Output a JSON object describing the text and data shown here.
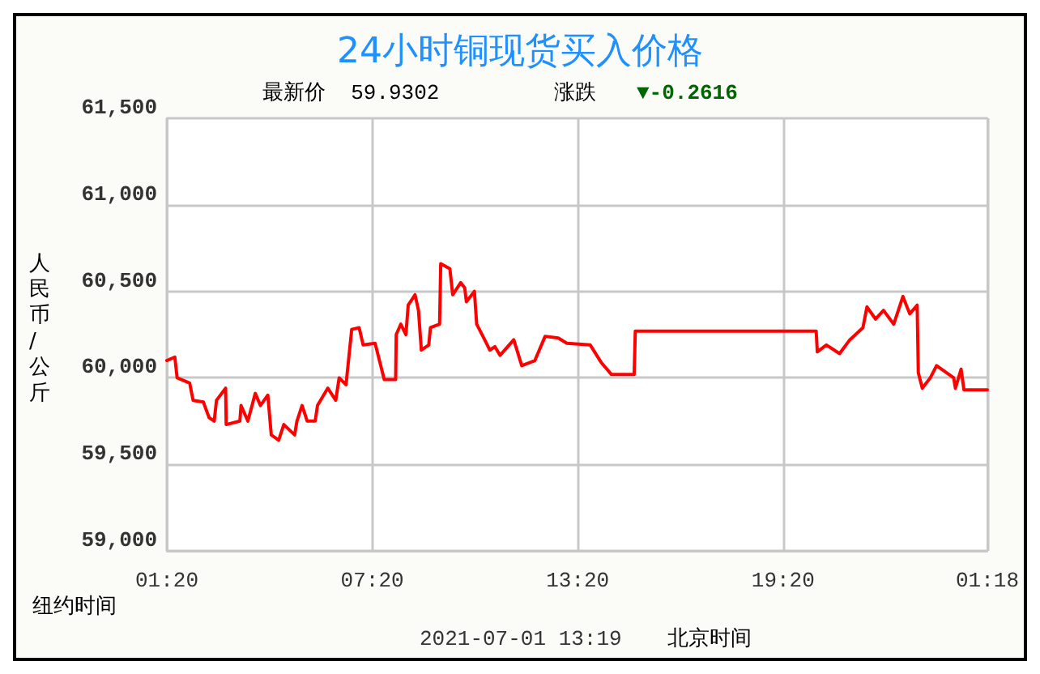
{
  "chart_data": {
    "type": "line",
    "title": "24小时铜现货买入价格",
    "ylabel": "人民币/公斤",
    "annotations": [
      "最新价  59.9302",
      "涨跌",
      "▼-0.2616",
      "纽约时间",
      "2021-07-01 13:19",
      "北京时间"
    ],
    "xlim": [
      "2021-06-30T01:20",
      "2021-07-01T01:18"
    ],
    "xticks": [
      {
        "value": "2021-06-30T01:20",
        "label": "01:20"
      },
      {
        "value": "2021-06-30T07:20",
        "label": "07:20"
      },
      {
        "value": "2021-06-30T13:20",
        "label": "13:20"
      },
      {
        "value": "2021-06-30T19:20",
        "label": "19:20"
      },
      {
        "value": "2021-07-01T01:18",
        "label": "01:18"
      }
    ],
    "ylim": [
      59000,
      61500
    ],
    "yticks": [
      {
        "value": 59000,
        "label": "59,000"
      },
      {
        "value": 59500,
        "label": "59,500"
      },
      {
        "value": 60000,
        "label": "60,000"
      },
      {
        "value": 60500,
        "label": "60,500"
      },
      {
        "value": 61000,
        "label": "61,000"
      },
      {
        "value": 61500,
        "label": "61,500"
      }
    ],
    "grid": true,
    "marker": "none",
    "line_style": "solid",
    "series": [
      {
        "color": "#ff0000",
        "x": [
          "2021-06-30T01:20",
          "2021-06-30T01:34",
          "2021-06-30T01:38",
          "2021-06-30T02:00",
          "2021-06-30T02:06",
          "2021-06-30T02:24",
          "2021-06-30T02:34",
          "2021-06-30T02:43",
          "2021-06-30T02:47",
          "2021-06-30T03:03",
          "2021-06-30T03:04",
          "2021-06-30T03:28",
          "2021-06-30T03:30",
          "2021-06-30T03:42",
          "2021-06-30T03:55",
          "2021-06-30T04:04",
          "2021-06-30T04:17",
          "2021-06-30T04:23",
          "2021-06-30T04:36",
          "2021-06-30T04:45",
          "2021-06-30T05:04",
          "2021-06-30T05:08",
          "2021-06-30T05:17",
          "2021-06-30T05:26",
          "2021-06-30T05:40",
          "2021-06-30T05:44",
          "2021-06-30T06:02",
          "2021-06-30T06:16",
          "2021-06-30T06:22",
          "2021-06-30T06:34",
          "2021-06-30T06:44",
          "2021-06-30T06:57",
          "2021-06-30T07:04",
          "2021-06-30T07:25",
          "2021-06-30T07:41",
          "2021-06-30T08:01",
          "2021-06-30T08:02",
          "2021-06-30T08:10",
          "2021-06-30T08:19",
          "2021-06-30T08:23",
          "2021-06-30T08:35",
          "2021-06-30T08:41",
          "2021-06-30T08:46",
          "2021-06-30T08:59",
          "2021-06-30T09:02",
          "2021-06-30T09:18",
          "2021-06-30T09:20",
          "2021-06-30T09:36",
          "2021-06-30T09:41",
          "2021-06-30T09:55",
          "2021-06-30T10:02",
          "2021-06-30T10:05",
          "2021-06-30T10:19",
          "2021-06-30T10:23",
          "2021-06-30T10:37",
          "2021-06-30T10:46",
          "2021-06-30T10:55",
          "2021-06-30T11:04",
          "2021-06-30T11:28",
          "2021-06-30T11:42",
          "2021-06-30T12:05",
          "2021-06-30T12:23",
          "2021-06-30T12:46",
          "2021-06-30T13:01",
          "2021-06-30T13:42",
          "2021-06-30T14:01",
          "2021-06-30T14:19",
          "2021-06-30T14:59",
          "2021-06-30T15:01",
          "2021-06-30T20:18",
          "2021-06-30T20:20",
          "2021-06-30T20:36",
          "2021-06-30T20:59",
          "2021-06-30T21:17",
          "2021-06-30T21:40",
          "2021-06-30T21:47",
          "2021-06-30T22:02",
          "2021-06-30T22:16",
          "2021-06-30T22:34",
          "2021-06-30T22:50",
          "2021-06-30T23:02",
          "2021-06-30T23:15",
          "2021-06-30T23:17",
          "2021-06-30T23:24",
          "2021-06-30T23:38",
          "2021-06-30T23:49",
          "2021-07-01T00:19",
          "2021-07-01T00:22",
          "2021-07-01T00:32",
          "2021-07-01T00:37",
          "2021-07-01T01:18"
        ],
        "values": [
          60100,
          60120,
          60000,
          59970,
          59870,
          59860,
          59770,
          59750,
          59870,
          59940,
          59730,
          59750,
          59840,
          59750,
          59910,
          59840,
          59900,
          59670,
          59640,
          59730,
          59670,
          59750,
          59840,
          59750,
          59750,
          59840,
          59940,
          59870,
          60000,
          59960,
          60280,
          60290,
          60190,
          60200,
          59990,
          59990,
          60250,
          60310,
          60250,
          60420,
          60480,
          60390,
          60160,
          60190,
          60290,
          60310,
          60660,
          60630,
          60480,
          60550,
          60520,
          60440,
          60500,
          60310,
          60220,
          60160,
          60180,
          60130,
          60220,
          60070,
          60100,
          60240,
          60230,
          60200,
          60190,
          60090,
          60020,
          60020,
          60270,
          60270,
          60150,
          60190,
          60140,
          60220,
          60290,
          60410,
          60340,
          60390,
          60310,
          60470,
          60370,
          60420,
          60030,
          59940,
          60000,
          60070,
          60000,
          59940,
          60050,
          59930,
          59930
        ]
      }
    ]
  }
}
